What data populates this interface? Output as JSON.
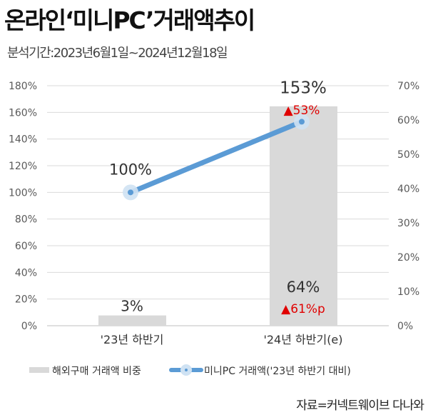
{
  "title": "온라인‘미니PC’거래액추이",
  "subtitle": "분석기간:2023년6월1일~2024년12월18일",
  "source": "자료=커넥트웨이브 다나와",
  "chart_data": {
    "type": "bar+line",
    "categories": [
      "'23년 하반기",
      "'24년 하반기(e)"
    ],
    "series": [
      {
        "name": "해외구매 거래액 비중",
        "type": "bar",
        "axis": "right",
        "values": [
          3,
          64
        ],
        "labels": [
          "3%",
          "64%"
        ],
        "color": "#d9d9d9"
      },
      {
        "name": "미니PC 거래액('23년 하반기 대비)",
        "type": "line",
        "axis": "left",
        "values": [
          100,
          153
        ],
        "labels": [
          "100%",
          "153%"
        ],
        "color": "#5b9bd5"
      }
    ],
    "annotations": [
      {
        "category": "'24년 하반기(e)",
        "text": "▲53%",
        "color": "#e00000"
      },
      {
        "category": "'24년 하반기(e)",
        "text": "▲61%p",
        "color": "#e00000"
      }
    ],
    "left_axis": {
      "range": [
        0,
        180
      ],
      "ticks": [
        "0%",
        "20%",
        "40%",
        "60%",
        "80%",
        "100%",
        "120%",
        "140%",
        "160%",
        "180%"
      ]
    },
    "right_axis": {
      "range": [
        0,
        70
      ],
      "ticks": [
        "0%",
        "10%",
        "20%",
        "30%",
        "40%",
        "50%",
        "60%",
        "70%"
      ]
    },
    "grid": true,
    "legend": "bottom"
  }
}
